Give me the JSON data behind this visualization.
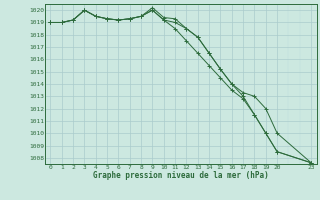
{
  "bg_color": "#cce8e0",
  "grid_color_major": "#aacccc",
  "grid_color_minor": "#bbdddd",
  "line_color": "#2d6b3c",
  "marker_color": "#2d6b3c",
  "title": "Graphe pression niveau de la mer (hPa)",
  "xlim": [
    -0.5,
    23.5
  ],
  "ylim": [
    1007.5,
    1020.5
  ],
  "yticks": [
    1008,
    1009,
    1010,
    1011,
    1012,
    1013,
    1014,
    1015,
    1016,
    1017,
    1018,
    1019,
    1020
  ],
  "xticks": [
    0,
    1,
    2,
    3,
    4,
    5,
    6,
    7,
    8,
    9,
    10,
    11,
    12,
    13,
    14,
    15,
    16,
    17,
    18,
    19,
    20,
    23
  ],
  "series": [
    {
      "x": [
        0,
        1,
        2,
        3,
        4,
        5,
        6,
        7,
        8,
        9,
        10,
        11,
        12,
        13,
        14,
        15,
        16,
        17,
        18,
        19,
        20,
        23
      ],
      "y": [
        1019.0,
        1019.0,
        1019.2,
        1020.0,
        1019.5,
        1019.3,
        1019.2,
        1019.3,
        1019.5,
        1020.2,
        1019.4,
        1019.3,
        1018.5,
        1017.8,
        1016.5,
        1015.2,
        1014.0,
        1013.3,
        1013.0,
        1012.0,
        1010.0,
        1007.6
      ]
    },
    {
      "x": [
        0,
        1,
        2,
        3,
        4,
        5,
        6,
        7,
        8,
        9,
        10,
        11,
        12,
        13,
        14,
        15,
        16,
        17,
        18,
        19,
        20,
        23
      ],
      "y": [
        1019.0,
        1019.0,
        1019.2,
        1020.0,
        1019.5,
        1019.3,
        1019.2,
        1019.3,
        1019.5,
        1020.0,
        1019.2,
        1018.5,
        1017.5,
        1016.5,
        1015.5,
        1014.5,
        1013.5,
        1012.8,
        1011.5,
        1010.0,
        1008.5,
        1007.6
      ]
    },
    {
      "x": [
        0,
        1,
        2,
        3,
        4,
        5,
        6,
        7,
        8,
        9,
        10,
        11,
        12,
        13,
        14,
        15,
        16,
        17,
        18,
        19,
        20,
        23
      ],
      "y": [
        1019.0,
        1019.0,
        1019.2,
        1020.0,
        1019.5,
        1019.3,
        1019.2,
        1019.3,
        1019.5,
        1020.0,
        1019.2,
        1019.0,
        1018.5,
        1017.8,
        1016.5,
        1015.2,
        1014.0,
        1013.0,
        1011.5,
        1010.0,
        1008.5,
        1007.6
      ]
    }
  ]
}
